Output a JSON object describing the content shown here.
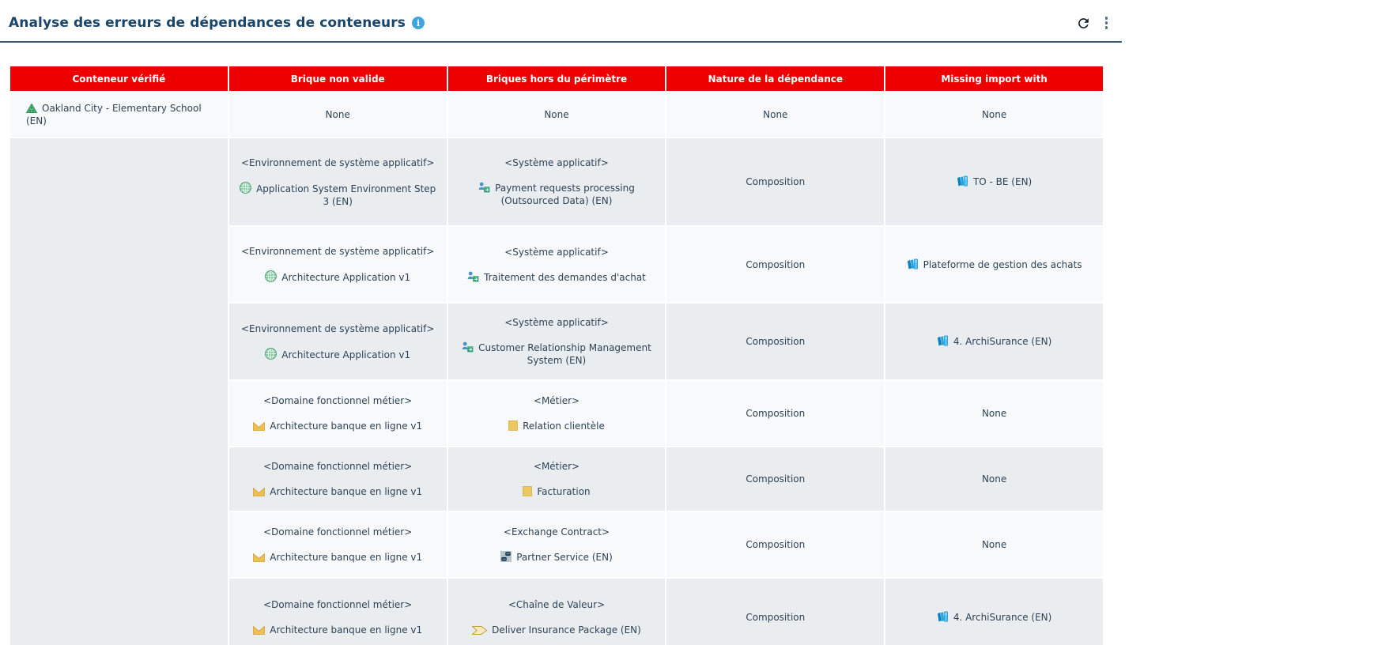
{
  "header": {
    "title": "Analyse des erreurs de dépendances de conteneurs",
    "info_glyph": "i"
  },
  "table": {
    "columns": [
      "Conteneur vérifié",
      "Brique non valide",
      "Briques hors du périmètre",
      "Nature de la dépendance",
      "Missing import with"
    ],
    "rows": [
      {
        "container": {
          "icon": "org-tree-icon",
          "name": "Oakland City - Elementary School (EN)"
        },
        "invalid_brick": "None",
        "out_of_scope": "None",
        "dependency_nature": "None",
        "missing_import": "None"
      },
      {
        "container": null,
        "invalid_brick": {
          "type": "<Environnement de système applicatif>",
          "icon": "globe-icon",
          "name": "Application System Environment Step 3 (EN)"
        },
        "out_of_scope": {
          "type": "<Système applicatif>",
          "icon": "app-system-icon",
          "name": "Payment requests processing (Outsourced Data) (EN)"
        },
        "dependency_nature": "Composition",
        "missing_import": {
          "icon": "model-books-icon",
          "name": "TO - BE (EN)"
        }
      },
      {
        "container": null,
        "invalid_brick": {
          "type": "<Environnement de système applicatif>",
          "icon": "globe-icon",
          "name": "Architecture Application v1"
        },
        "out_of_scope": {
          "type": "<Système applicatif>",
          "icon": "app-system-icon",
          "name": "Traitement des demandes d'achat"
        },
        "dependency_nature": "Composition",
        "missing_import": {
          "icon": "model-books-icon",
          "name": "Plateforme de gestion des achats"
        }
      },
      {
        "container": null,
        "invalid_brick": {
          "type": "<Environnement de système applicatif>",
          "icon": "globe-icon",
          "name": "Architecture Application v1"
        },
        "out_of_scope": {
          "type": "<Système applicatif>",
          "icon": "app-system-icon",
          "name": "Customer Relationship Management System (EN)"
        },
        "dependency_nature": "Composition",
        "missing_import": {
          "icon": "model-books-icon",
          "name": "4. ArchiSurance (EN)"
        }
      },
      {
        "container": null,
        "invalid_brick": {
          "type": "<Domaine fonctionnel métier>",
          "icon": "business-function-icon",
          "name": "Architecture banque en ligne v1"
        },
        "out_of_scope": {
          "type": "<Métier>",
          "icon": "business-square-icon",
          "name": "Relation clientèle"
        },
        "dependency_nature": "Composition",
        "missing_import": "None"
      },
      {
        "container": null,
        "invalid_brick": {
          "type": "<Domaine fonctionnel métier>",
          "icon": "business-function-icon",
          "name": "Architecture banque en ligne v1"
        },
        "out_of_scope": {
          "type": "<Métier>",
          "icon": "business-square-icon",
          "name": "Facturation"
        },
        "dependency_nature": "Composition",
        "missing_import": "None"
      },
      {
        "container": null,
        "invalid_brick": {
          "type": "<Domaine fonctionnel métier>",
          "icon": "business-function-icon",
          "name": "Architecture banque en ligne v1"
        },
        "out_of_scope": {
          "type": "<Exchange Contract>",
          "icon": "exchange-contract-icon",
          "name": "Partner Service (EN)"
        },
        "dependency_nature": "Composition",
        "missing_import": "None"
      },
      {
        "container": null,
        "invalid_brick": {
          "type": "<Domaine fonctionnel métier>",
          "icon": "business-function-icon",
          "name": "Architecture banque en ligne v1"
        },
        "out_of_scope": {
          "type": "<Chaîne de Valeur>",
          "icon": "value-chain-icon",
          "name": "Deliver Insurance Package (EN)"
        },
        "dependency_nature": "Composition",
        "missing_import": {
          "icon": "model-books-icon",
          "name": "4. ArchiSurance (EN)"
        }
      }
    ]
  },
  "colors": {
    "header_red": "#ee0000",
    "title_navy": "#1a4468",
    "body_text": "#2e4257",
    "row_odd": "#f7f9fa",
    "row_even": "#e9edf0",
    "info_blue": "#3fa5e0"
  }
}
